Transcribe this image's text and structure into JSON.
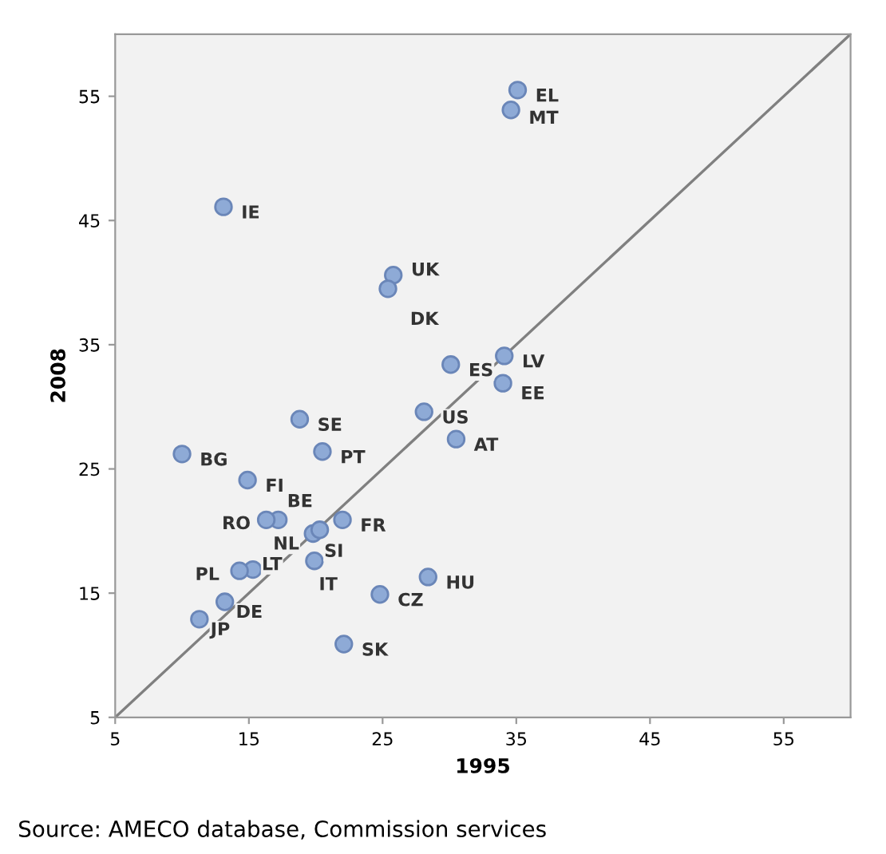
{
  "chart_data": {
    "type": "scatter",
    "xlabel": "1995",
    "ylabel": "2008",
    "xlim": [
      5,
      60
    ],
    "ylim": [
      5,
      60
    ],
    "xticks": [
      5,
      15,
      25,
      35,
      45,
      55
    ],
    "yticks": [
      5,
      15,
      25,
      35,
      45,
      55
    ],
    "grid": false,
    "legend": false,
    "series": [
      {
        "marker": "circle",
        "color": "#8eaad6",
        "x": [
          35.1,
          34.6,
          13.1,
          25.8,
          25.4,
          30.1,
          34.1,
          34.0,
          28.1,
          18.8,
          30.5,
          10.0,
          20.5,
          14.9,
          17.2,
          16.3,
          22.0,
          19.8,
          20.3,
          19.9,
          15.3,
          14.3,
          28.4,
          24.8,
          13.2,
          11.3,
          22.1
        ],
        "values": [
          55.5,
          53.9,
          46.1,
          40.6,
          39.5,
          33.4,
          34.1,
          31.9,
          29.6,
          29.0,
          27.4,
          26.2,
          26.4,
          24.1,
          20.9,
          20.9,
          20.9,
          19.8,
          20.1,
          17.6,
          16.9,
          16.8,
          16.3,
          14.9,
          14.3,
          12.9,
          10.9
        ]
      },
      {
        "type": "line",
        "color": "#808080",
        "x": [
          5,
          60
        ],
        "values": [
          5,
          60
        ],
        "line_style": "solid",
        "marker": "none"
      }
    ],
    "annotations": [
      {
        "text": "EL",
        "x": 35.1,
        "y": 55.5
      },
      {
        "text": "MT",
        "x": 34.6,
        "y": 53.9
      },
      {
        "text": "IE",
        "x": 13.1,
        "y": 46.1
      },
      {
        "text": "UK",
        "x": 25.8,
        "y": 40.6
      },
      {
        "text": "DK",
        "x": 25.4,
        "y": 39.5
      },
      {
        "text": "ES",
        "x": 30.1,
        "y": 33.4
      },
      {
        "text": "LV",
        "x": 34.1,
        "y": 34.1
      },
      {
        "text": "EE",
        "x": 34.0,
        "y": 31.9
      },
      {
        "text": "US",
        "x": 28.1,
        "y": 29.6
      },
      {
        "text": "SE",
        "x": 18.8,
        "y": 29.0
      },
      {
        "text": "AT",
        "x": 30.5,
        "y": 27.4
      },
      {
        "text": "BG",
        "x": 10.0,
        "y": 26.2
      },
      {
        "text": "PT",
        "x": 20.5,
        "y": 26.4
      },
      {
        "text": "FI",
        "x": 14.9,
        "y": 24.1
      },
      {
        "text": "BE",
        "x": 17.2,
        "y": 20.9
      },
      {
        "text": "RO",
        "x": 16.3,
        "y": 20.9
      },
      {
        "text": "FR",
        "x": 22.0,
        "y": 20.9
      },
      {
        "text": "NL",
        "x": 19.8,
        "y": 19.8
      },
      {
        "text": "SI",
        "x": 20.3,
        "y": 20.1
      },
      {
        "text": "IT",
        "x": 19.9,
        "y": 17.6
      },
      {
        "text": "LT",
        "x": 15.3,
        "y": 16.9
      },
      {
        "text": "PL",
        "x": 14.3,
        "y": 16.8
      },
      {
        "text": "HU",
        "x": 28.4,
        "y": 16.3
      },
      {
        "text": "CZ",
        "x": 24.8,
        "y": 14.9
      },
      {
        "text": "DE",
        "x": 13.2,
        "y": 14.3
      },
      {
        "text": "JP",
        "x": 11.3,
        "y": 12.9
      },
      {
        "text": "SK",
        "x": 22.1,
        "y": 10.9
      },
      "Source: AMECO database, Commission services"
    ]
  }
}
